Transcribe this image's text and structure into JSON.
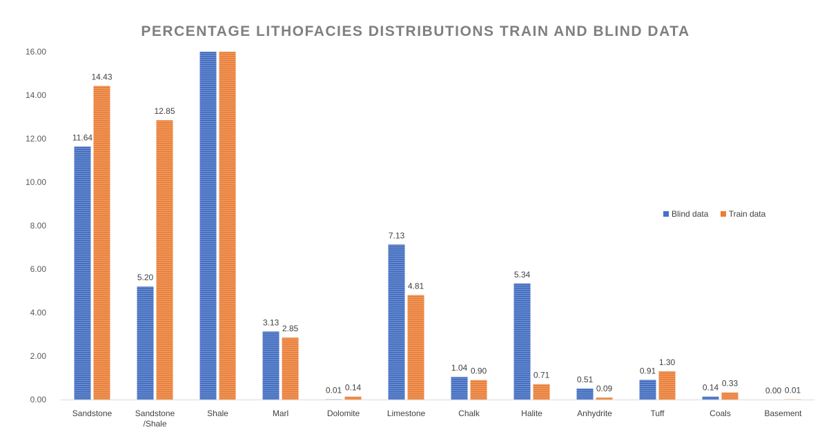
{
  "chart_data": {
    "type": "bar",
    "title": "PERCENTAGE LITHOFACIES DISTRIBUTIONS TRAIN AND BLIND DATA",
    "xlabel": "",
    "ylabel": "",
    "ylim": [
      0,
      16
    ],
    "yticks": [
      "0.00",
      "2.00",
      "4.00",
      "6.00",
      "8.00",
      "10.00",
      "12.00",
      "14.00",
      "16.00"
    ],
    "categories": [
      [
        "Sandstone"
      ],
      [
        "Sandstone",
        "/Shale"
      ],
      [
        "Shale"
      ],
      [
        "Marl"
      ],
      [
        "Dolomite"
      ],
      [
        "Limestone"
      ],
      [
        "Chalk"
      ],
      [
        "Halite"
      ],
      [
        "Anhydrite"
      ],
      [
        "Tuff"
      ],
      [
        "Coals"
      ],
      [
        "Basement"
      ]
    ],
    "series": [
      {
        "name": "Blind data",
        "color": "#4472c4",
        "values": [
          11.64,
          5.2,
          16.0,
          3.13,
          0.01,
          7.13,
          1.04,
          5.34,
          0.51,
          0.91,
          0.14,
          0.0
        ],
        "labels": [
          "11.64",
          "5.20",
          null,
          "3.13",
          "0.01",
          "7.13",
          "1.04",
          "5.34",
          "0.51",
          "0.91",
          "0.14",
          "0.00"
        ]
      },
      {
        "name": "Train data",
        "color": "#ed7d31",
        "values": [
          14.43,
          12.85,
          16.0,
          2.85,
          0.14,
          4.81,
          0.9,
          0.71,
          0.09,
          1.3,
          0.33,
          0.01
        ],
        "labels": [
          "14.43",
          "12.85",
          null,
          "2.85",
          "0.14",
          "4.81",
          "0.90",
          "0.71",
          "0.09",
          "1.30",
          "0.33",
          "0.01"
        ]
      }
    ],
    "grid": false,
    "legend_position": "right"
  }
}
